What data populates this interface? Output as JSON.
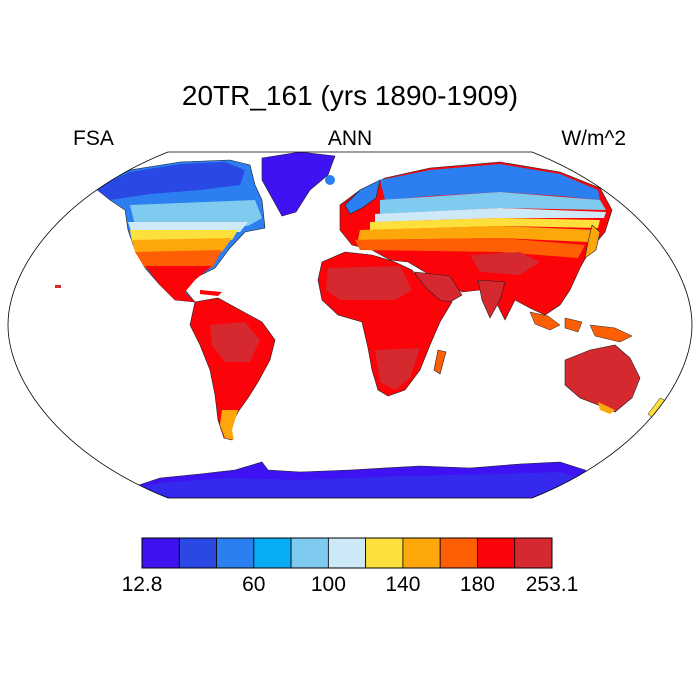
{
  "title": "20TR_161 (yrs 1890-1909)",
  "header": {
    "left": "FSA",
    "center": "ANN",
    "right": "W/m^2"
  },
  "colorbar": {
    "colors": [
      "#3e12f2",
      "#2948e4",
      "#2c7ff0",
      "#06acf4",
      "#7ecbef",
      "#cde8f6",
      "#fee03c",
      "#fea70b",
      "#fe5e04",
      "#fb0309",
      "#d6282f"
    ],
    "labels": [
      {
        "text": "12.8",
        "edge": 0
      },
      {
        "text": "60",
        "edge": 3
      },
      {
        "text": "100",
        "edge": 5
      },
      {
        "text": "140",
        "edge": 7
      },
      {
        "text": "180",
        "edge": 9
      },
      {
        "text": "253.1",
        "edge": 11
      }
    ]
  }
}
